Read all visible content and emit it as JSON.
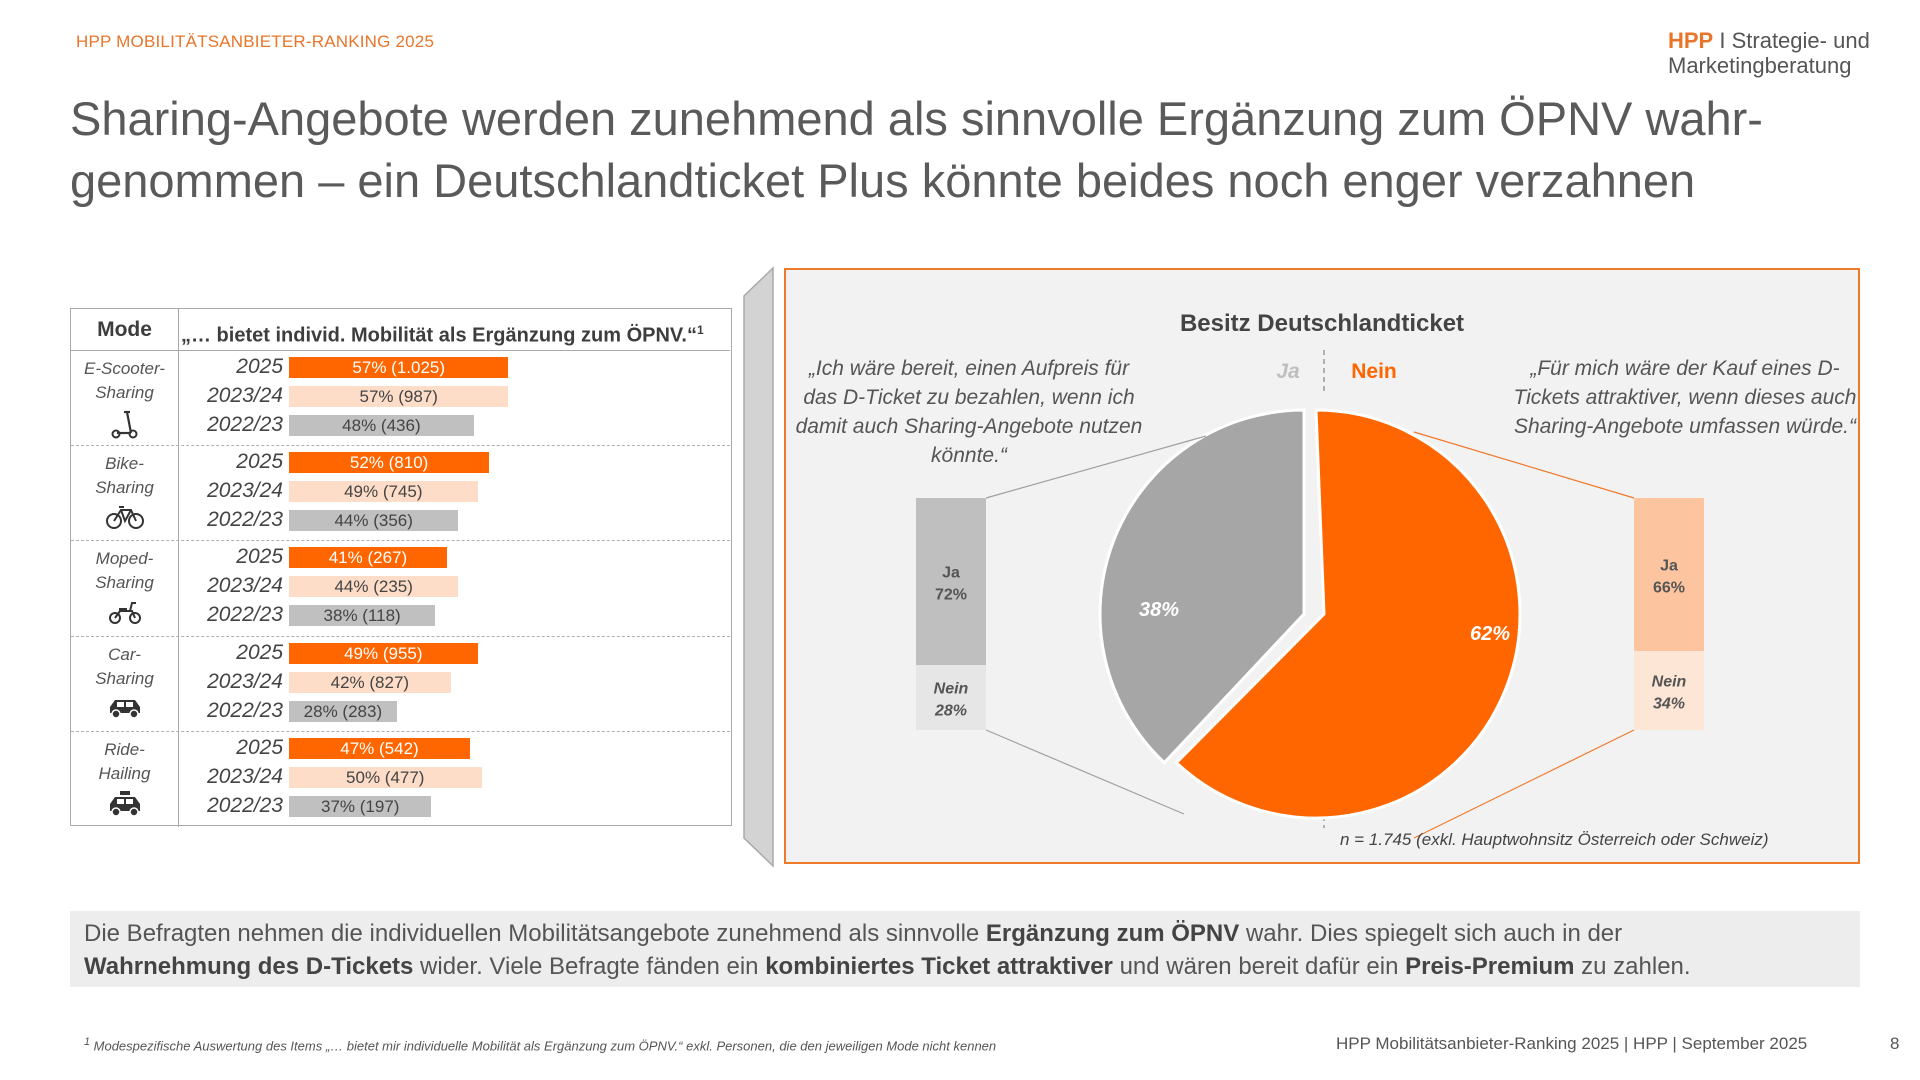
{
  "header": {
    "tag": "HPP MOBILITÄTSANBIETER-RANKING 2025",
    "logo_brand": "HPP",
    "logo_line1": "I Strategie- und",
    "logo_line2": "Marketingberatung"
  },
  "title": {
    "line1": "Sharing-Angebote werden zunehmend als sinnvolle Ergänzung zum ÖPNV wahr-",
    "line2": "genommen – ein Deutschlandticket Plus könnte beides noch enger verzahnen"
  },
  "table": {
    "col_mode": "Mode",
    "col_question": "„… bietet individ. Mobilität als Ergänzung zum ÖPNV.“",
    "col_question_sup": "1",
    "years": [
      "2025",
      "2023/24",
      "2022/23"
    ],
    "modes": [
      {
        "line1": "E-Scooter-",
        "line2": "Sharing",
        "icon": "scooter-icon",
        "values": [
          57,
          57,
          48
        ],
        "labels": [
          "57% (1.025)",
          "57% (987)",
          "48% (436)"
        ]
      },
      {
        "line1": "Bike-",
        "line2": "Sharing",
        "icon": "bike-icon",
        "values": [
          52,
          49,
          44
        ],
        "labels": [
          "52% (810)",
          "49% (745)",
          "44% (356)"
        ]
      },
      {
        "line1": "Moped-",
        "line2": "Sharing",
        "icon": "moped-icon",
        "values": [
          41,
          44,
          38
        ],
        "labels": [
          "41% (267)",
          "44% (235)",
          "38% (118)"
        ]
      },
      {
        "line1": "Car-",
        "line2": "Sharing",
        "icon": "car-icon",
        "values": [
          49,
          42,
          28
        ],
        "labels": [
          "49% (955)",
          "42% (827)",
          "28% (283)"
        ]
      },
      {
        "line1": "Ride-",
        "line2": "Hailing",
        "icon": "taxi-icon",
        "values": [
          47,
          50,
          37
        ],
        "labels": [
          "47% (542)",
          "50% (477)",
          "37% (197)"
        ]
      }
    ]
  },
  "chart_data": {
    "type": "pie",
    "title": "Besitz Deutschlandticket",
    "slices": [
      {
        "label": "Ja",
        "value": 38,
        "display": "38%",
        "color": "#A6A6A6"
      },
      {
        "label": "Nein",
        "value": 62,
        "display": "62%",
        "color": "#FF6600"
      }
    ],
    "left_breakdown": {
      "quote": "„Ich wäre bereit, einen Aufpreis für das D-Ticket zu bezahlen, wenn ich damit auch Sharing-Angebote nutzen könnte.“",
      "segments": [
        {
          "label": "Ja",
          "value": 72,
          "display": "72%",
          "color": "#BFBFBF"
        },
        {
          "label": "Nein",
          "value": 28,
          "display": "28%",
          "color": "#E6E6E6"
        }
      ]
    },
    "right_breakdown": {
      "quote": "„Für mich wäre der Kauf eines D-Tickets attraktiver, wenn dieses auch Sharing-Angebote umfassen würde.“",
      "segments": [
        {
          "label": "Ja",
          "value": 66,
          "display": "66%",
          "color": "#FDC59F"
        },
        {
          "label": "Nein",
          "value": 34,
          "display": "34%",
          "color": "#FDE6D6"
        }
      ]
    },
    "note": "n = 1.745 (exkl. Hauptwohnsitz Österreich oder Schweiz)"
  },
  "summary": {
    "p1": "Die Befragten nehmen die individuellen Mobilitätsangebote zunehmend als sinnvolle ",
    "b1": "Ergänzung zum ÖPNV",
    "p2": " wahr. Dies spiegelt sich auch in der ",
    "b2": "Wahrnehmung des D-Tickets",
    "p3": " wider. Viele Befragte fänden ein ",
    "b3": "kombiniertes Ticket attraktiver",
    "p4": " und wären bereit dafür ein ",
    "b4": "Preis-Premium",
    "p5": " zu zahlen."
  },
  "footer": {
    "footnote_sup": "1",
    "footnote": " Modespezifische Auswertung des Items „… bietet mir individuelle Mobilität als Ergänzung zum ÖPNV.“ exkl. Personen, die den jeweiligen Mode nicht kennen",
    "source": "HPP Mobilitätsanbieter-Ranking 2025 | HPP | September 2025",
    "page": "8"
  }
}
